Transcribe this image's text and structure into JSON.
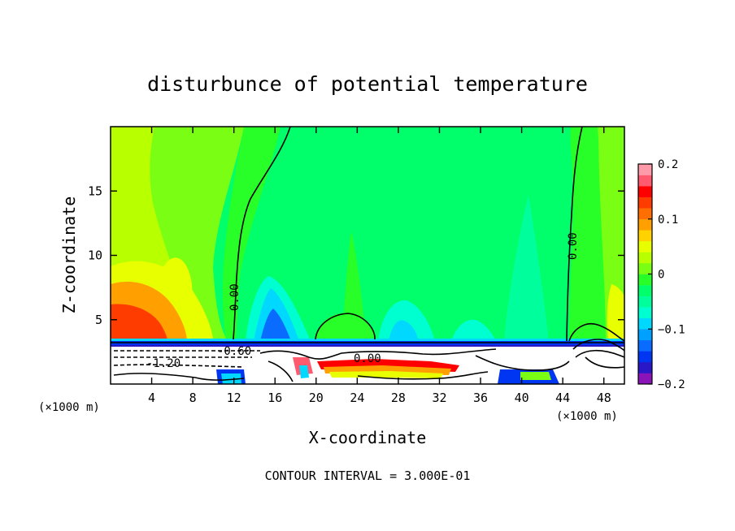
{
  "chart_data": {
    "type": "heatmap",
    "title": "disturbunce of potential temperature",
    "xlabel": "X-coordinate",
    "ylabel": "Z-coordinate",
    "x_unit_left": "(×1000 m)",
    "x_unit_right": "(×1000 m)",
    "footer": "CONTOUR INTERVAL = 3.000E-01",
    "xlim": [
      0,
      50
    ],
    "ylim": [
      0,
      20
    ],
    "x_ticks": [
      4,
      8,
      12,
      16,
      20,
      24,
      28,
      32,
      36,
      40,
      44,
      48
    ],
    "y_ticks": [
      5,
      10,
      15
    ],
    "colorbar": {
      "min": -0.2,
      "max": 0.2,
      "tick_values": [
        0.2,
        0.1,
        0,
        -0.1,
        -0.2
      ],
      "tick_labels": [
        "0.2",
        "0.1",
        "0",
        "−0.1",
        "−0.2"
      ],
      "colors": [
        "#8a14b8",
        "#2a18c8",
        "#0036f2",
        "#0a6cff",
        "#00a0ff",
        "#00d8ff",
        "#00ffd0",
        "#00ff9c",
        "#00ff6a",
        "#28ff28",
        "#7aff14",
        "#b8ff00",
        "#e8ff00",
        "#ffd200",
        "#ffa000",
        "#ff6e00",
        "#ff3c00",
        "#ff0000",
        "#ff5a6e",
        "#ff9aa8"
      ]
    },
    "contour_labels": [
      {
        "text": "0.00",
        "x": 11.9,
        "z": 7.0
      },
      {
        "text": "0.00",
        "x": 44.6,
        "z": 11.0
      },
      {
        "text": "0.00",
        "x": 25.0,
        "z": 2.05
      },
      {
        "text": "-0.60",
        "x": 12.0,
        "z": 2.65
      },
      {
        "text": "-1.20",
        "x": 6.0,
        "z": 1.75
      }
    ]
  }
}
